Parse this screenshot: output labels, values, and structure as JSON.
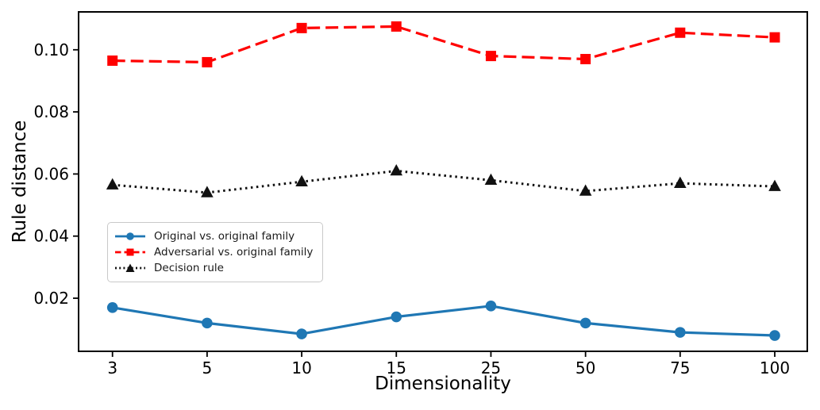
{
  "window": {
    "background": "#ffffff"
  },
  "chart_data": {
    "type": "line",
    "title": "",
    "xlabel": "Dimensionality",
    "ylabel": "Rule distance",
    "x_axis_type": "categorical",
    "categories": [
      "3",
      "5",
      "10",
      "15",
      "25",
      "50",
      "75",
      "100"
    ],
    "y_ticks": [
      0.02,
      0.04,
      0.06,
      0.08,
      0.1
    ],
    "y_tick_labels": [
      "0.02",
      "0.04",
      "0.06",
      "0.08",
      "0.10"
    ],
    "ylim": [
      0.0029,
      0.1122
    ],
    "grid": false,
    "legend": {
      "position": "middle-left",
      "border_color": "#c9c9c9"
    },
    "series": [
      {
        "name": "Original vs. original family",
        "color": "#1f77b4",
        "line_style": "solid",
        "marker": "circle",
        "values": [
          0.017,
          0.012,
          0.0085,
          0.014,
          0.0175,
          0.012,
          0.009,
          0.008
        ]
      },
      {
        "name": "Adversarial vs. original family",
        "color": "#ff0000",
        "line_style": "dashed",
        "marker": "square",
        "values": [
          0.0965,
          0.096,
          0.107,
          0.1075,
          0.098,
          0.097,
          0.1055,
          0.104
        ]
      },
      {
        "name": "Decision rule",
        "color": "#111111",
        "line_style": "dotted",
        "marker": "triangle",
        "values": [
          0.0565,
          0.054,
          0.0575,
          0.061,
          0.058,
          0.0545,
          0.057,
          0.056
        ]
      }
    ]
  }
}
